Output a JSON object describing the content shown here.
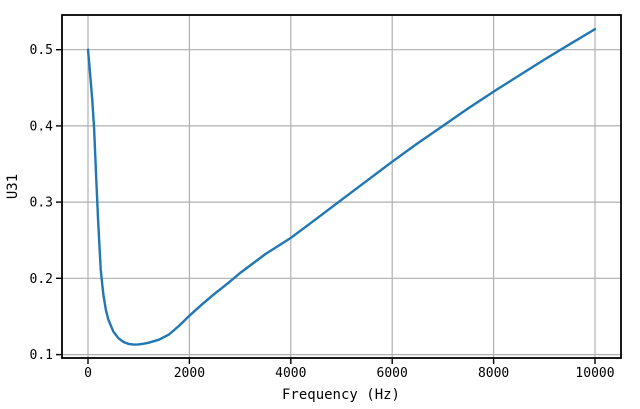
{
  "figure": {
    "background": "#ffffff",
    "plot_background": "#ffffff"
  },
  "chart_data": {
    "type": "line",
    "title": "",
    "xlabel": "Frequency (Hz)",
    "ylabel": "U31",
    "legend": null,
    "grid": true,
    "grid_color": "#b0b0b0",
    "axis_color": "#000000",
    "xlim": [
      -513,
      10513
    ],
    "ylim": [
      0.0955,
      0.5455
    ],
    "x_ticks": {
      "values": [
        0,
        2000,
        4000,
        6000,
        8000,
        10000
      ],
      "labels": [
        "0",
        "2000",
        "4000",
        "6000",
        "8000",
        "10000"
      ]
    },
    "y_ticks": {
      "values": [
        0.1,
        0.2,
        0.3,
        0.4,
        0.5
      ],
      "labels": [
        "0.1",
        "0.2",
        "0.3",
        "0.4",
        "0.5"
      ]
    },
    "x": [
      0,
      40,
      80,
      120,
      160,
      200,
      250,
      300,
      350,
      400,
      500,
      600,
      700,
      800,
      900,
      1000,
      1100,
      1200,
      1400,
      1600,
      1800,
      2000,
      2250,
      2500,
      2750,
      3000,
      3250,
      3500,
      3750,
      4000,
      4500,
      5000,
      5500,
      6000,
      6500,
      7000,
      7500,
      8000,
      8500,
      9000,
      9500,
      10000
    ],
    "series": [
      {
        "name": "U31",
        "color": "#1f77b4",
        "line_width": 2.4,
        "values": [
          0.5,
          0.47,
          0.437,
          0.397,
          0.335,
          0.276,
          0.212,
          0.18,
          0.159,
          0.146,
          0.13,
          0.1215,
          0.1165,
          0.114,
          0.1131,
          0.1133,
          0.1142,
          0.1156,
          0.1195,
          0.1265,
          0.138,
          0.151,
          0.166,
          0.18,
          0.193,
          0.207,
          0.2195,
          0.232,
          0.2425,
          0.253,
          0.278,
          0.303,
          0.328,
          0.353,
          0.377,
          0.4,
          0.423,
          0.445,
          0.466,
          0.487,
          0.507,
          0.527
        ]
      }
    ]
  }
}
